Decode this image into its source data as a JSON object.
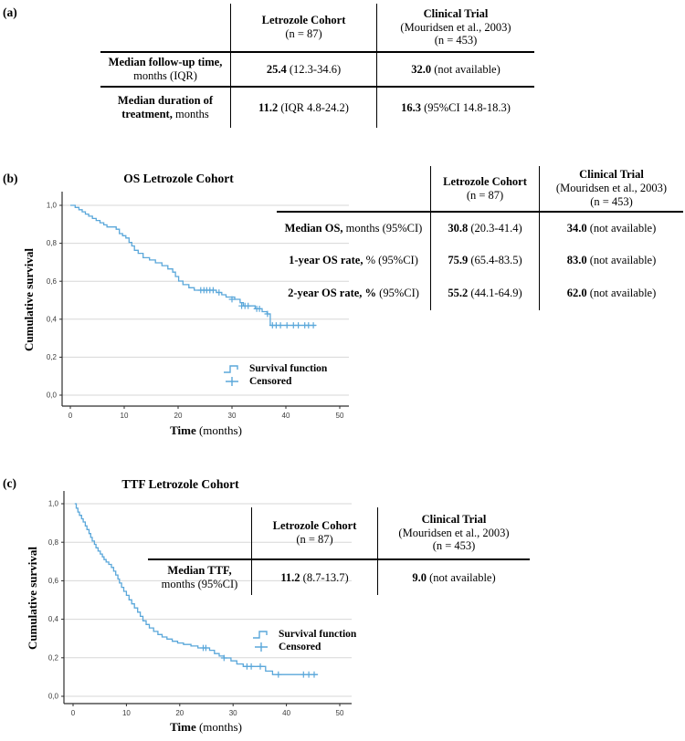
{
  "panels": {
    "a": {
      "label": "(a)",
      "table": {
        "header": {
          "col1_title": "Letrozole Cohort",
          "col1_sub": "(n = 87)",
          "col2_title": "Clinical Trial",
          "col2_sub": "(Mouridsen et al., 2003)",
          "col2_sub2": "(n = 453)"
        },
        "rows": [
          {
            "label_bold": "Median follow-up time,",
            "label_reg": " months (IQR)",
            "v1_bold": "25.4",
            "v1_reg": " (12.3-34.6)",
            "v2_bold": "32.0",
            "v2_reg": " (not available)"
          },
          {
            "label_bold": "Median duration of treatment,",
            "label_reg": " months",
            "v1_bold": "11.2",
            "v1_reg": " (IQR 4.8-24.2)",
            "v2_bold": "16.3",
            "v2_reg": " (95%CI 14.8-18.3)"
          }
        ]
      }
    },
    "b": {
      "label": "(b)",
      "title": "OS Letrozole Cohort",
      "ylabel": "Cumulative survival",
      "xlabel_bold": "Time",
      "xlabel_reg": " (months)",
      "legend": {
        "survival": "Survival function",
        "censored": "Censored"
      },
      "table": {
        "header": {
          "col1_title": "Letrozole Cohort",
          "col1_sub": "(n = 87)",
          "col2_title": "Clinical Trial",
          "col2_sub": "(Mouridsen et al., 2003)",
          "col2_sub2": "(n = 453)"
        },
        "rows": [
          {
            "label_bold": "Median OS,",
            "label_reg": " months (95%CI)",
            "v1_bold": "30.8",
            "v1_reg": " (20.3-41.4)",
            "v2_bold": "34.0",
            "v2_reg": " (not available)"
          },
          {
            "label_bold": "1-year OS rate,",
            "label_reg": " % (95%CI)",
            "v1_bold": "75.9",
            "v1_reg": " (65.4-83.5)",
            "v2_bold": "83.0",
            "v2_reg": " (not available)"
          },
          {
            "label_bold": "2-year OS rate, %",
            "label_reg": " (95%CI)",
            "v1_bold": "55.2",
            "v1_reg": " (44.1-64.9)",
            "v2_bold": "62.0",
            "v2_reg": " (not available)"
          }
        ]
      }
    },
    "c": {
      "label": "(c)",
      "title": "TTF Letrozole Cohort",
      "ylabel": "Cumulative survival",
      "xlabel_bold": "Time",
      "xlabel_reg": " (months)",
      "legend": {
        "survival": "Survival function",
        "censored": "Censored"
      },
      "table": {
        "header": {
          "col1_title": "Letrozole Cohort",
          "col1_sub": "(n = 87)",
          "col2_title": "Clinical Trial",
          "col2_sub": "(Mouridsen et al., 2003)",
          "col2_sub2": "(n = 453)"
        },
        "rows": [
          {
            "label_bold": "Median TTF,",
            "label_reg": " months (95%CI)",
            "v1_bold": "11.2",
            "v1_reg": " (8.7-13.7)",
            "v2_bold": "9.0",
            "v2_reg": " (not available)"
          }
        ]
      }
    }
  },
  "chart_data": [
    {
      "id": "os",
      "type": "line",
      "subtype": "kaplan-meier-step",
      "title": "OS Letrozole Cohort",
      "xlabel": "Time (months)",
      "ylabel": "Cumulative survival",
      "xlim": [
        0,
        50
      ],
      "ylim": [
        0.0,
        1.0
      ],
      "xticks": [
        "0",
        "10",
        "20",
        "30",
        "40",
        "50"
      ],
      "yticks": [
        "0,0",
        "0,2",
        "0,4",
        "0,6",
        "0,8",
        "1,0"
      ],
      "grid": true,
      "legend_position": "lower center-right",
      "legend": [
        "Survival function",
        "Censored"
      ],
      "color": "#5aa7da",
      "series": [
        {
          "name": "Survival function",
          "step_points": [
            [
              0,
              1.0
            ],
            [
              0.9,
              0.989
            ],
            [
              1.6,
              0.977
            ],
            [
              2.2,
              0.966
            ],
            [
              2.8,
              0.954
            ],
            [
              3.4,
              0.943
            ],
            [
              4.1,
              0.931
            ],
            [
              4.8,
              0.92
            ],
            [
              5.5,
              0.908
            ],
            [
              6.2,
              0.897
            ],
            [
              6.8,
              0.886
            ],
            [
              8.5,
              0.874
            ],
            [
              9.1,
              0.851
            ],
            [
              9.7,
              0.84
            ],
            [
              10.3,
              0.828
            ],
            [
              10.9,
              0.805
            ],
            [
              11.4,
              0.786
            ],
            [
              11.9,
              0.763
            ],
            [
              12.6,
              0.747
            ],
            [
              13.5,
              0.724
            ],
            [
              14.7,
              0.712
            ],
            [
              15.8,
              0.697
            ],
            [
              17,
              0.682
            ],
            [
              18.1,
              0.665
            ],
            [
              19,
              0.648
            ],
            [
              19.5,
              0.625
            ],
            [
              20.1,
              0.601
            ],
            [
              20.9,
              0.582
            ],
            [
              22,
              0.566
            ],
            [
              23,
              0.553
            ],
            [
              27.1,
              0.541
            ],
            [
              28.1,
              0.529
            ],
            [
              28.9,
              0.517
            ],
            [
              30.5,
              0.505
            ],
            [
              31.5,
              0.487
            ],
            [
              32.1,
              0.47
            ],
            [
              34.3,
              0.455
            ],
            [
              35.6,
              0.44
            ],
            [
              36.5,
              0.428
            ],
            [
              37.1,
              0.368
            ],
            [
              45.6,
              0.368
            ]
          ]
        }
      ],
      "censored_points": [
        [
          24.2,
          0.553
        ],
        [
          24.8,
          0.553
        ],
        [
          25.3,
          0.553
        ],
        [
          25.9,
          0.553
        ],
        [
          26.5,
          0.553
        ],
        [
          27.6,
          0.541
        ],
        [
          30,
          0.505
        ],
        [
          31.8,
          0.47
        ],
        [
          32.4,
          0.47
        ],
        [
          33,
          0.47
        ],
        [
          34.6,
          0.455
        ],
        [
          35.1,
          0.455
        ],
        [
          36.6,
          0.428
        ],
        [
          37.5,
          0.368
        ],
        [
          38.2,
          0.368
        ],
        [
          39,
          0.368
        ],
        [
          40.2,
          0.368
        ],
        [
          41.4,
          0.368
        ],
        [
          42.3,
          0.368
        ],
        [
          43.5,
          0.368
        ],
        [
          44.2,
          0.368
        ],
        [
          45.1,
          0.368
        ]
      ]
    },
    {
      "id": "ttf",
      "type": "line",
      "subtype": "kaplan-meier-step",
      "title": "TTF Letrozole Cohort",
      "xlabel": "Time (months)",
      "ylabel": "Cumulative survival",
      "xlim": [
        0,
        50
      ],
      "ylim": [
        0.0,
        1.0
      ],
      "xticks": [
        "0",
        "10",
        "20",
        "30",
        "40",
        "50"
      ],
      "yticks": [
        "0,0",
        "0,2",
        "0,4",
        "0,6",
        "0,8",
        "1,0"
      ],
      "grid": true,
      "legend_position": "center right",
      "legend": [
        "Survival function",
        "Censored"
      ],
      "color": "#5aa7da",
      "series": [
        {
          "name": "Survival function",
          "step_points": [
            [
              0.3,
              1.0
            ],
            [
              0.6,
              0.977
            ],
            [
              0.9,
              0.957
            ],
            [
              1.2,
              0.94
            ],
            [
              1.6,
              0.922
            ],
            [
              1.9,
              0.905
            ],
            [
              2.3,
              0.885
            ],
            [
              2.6,
              0.866
            ],
            [
              3.0,
              0.845
            ],
            [
              3.3,
              0.825
            ],
            [
              3.6,
              0.806
            ],
            [
              4.0,
              0.789
            ],
            [
              4.3,
              0.771
            ],
            [
              4.7,
              0.754
            ],
            [
              5.1,
              0.739
            ],
            [
              5.5,
              0.724
            ],
            [
              5.8,
              0.71
            ],
            [
              6.2,
              0.697
            ],
            [
              6.7,
              0.685
            ],
            [
              7.2,
              0.669
            ],
            [
              7.6,
              0.65
            ],
            [
              8.0,
              0.63
            ],
            [
              8.4,
              0.609
            ],
            [
              8.7,
              0.588
            ],
            [
              9.1,
              0.566
            ],
            [
              9.5,
              0.545
            ],
            [
              10.0,
              0.524
            ],
            [
              10.5,
              0.501
            ],
            [
              11.0,
              0.48
            ],
            [
              11.5,
              0.459
            ],
            [
              12.1,
              0.437
            ],
            [
              12.6,
              0.415
            ],
            [
              13.1,
              0.392
            ],
            [
              13.7,
              0.373
            ],
            [
              14.3,
              0.355
            ],
            [
              15.1,
              0.337
            ],
            [
              15.9,
              0.321
            ],
            [
              16.7,
              0.308
            ],
            [
              17.6,
              0.297
            ],
            [
              18.6,
              0.286
            ],
            [
              19.6,
              0.277
            ],
            [
              20.7,
              0.269
            ],
            [
              22.1,
              0.261
            ],
            [
              23.4,
              0.251
            ],
            [
              25.6,
              0.239
            ],
            [
              26.5,
              0.222
            ],
            [
              27.4,
              0.209
            ],
            [
              28.3,
              0.199
            ],
            [
              29.6,
              0.184
            ],
            [
              30.7,
              0.168
            ],
            [
              31.9,
              0.155
            ],
            [
              36.1,
              0.131
            ],
            [
              37.4,
              0.113
            ],
            [
              45.9,
              0.113
            ]
          ]
        }
      ],
      "censored_points": [
        [
          24.4,
          0.251
        ],
        [
          24.9,
          0.251
        ],
        [
          28.3,
          0.199
        ],
        [
          32.6,
          0.155
        ],
        [
          33.4,
          0.155
        ],
        [
          35.1,
          0.155
        ],
        [
          38.5,
          0.113
        ],
        [
          43.2,
          0.113
        ],
        [
          44.2,
          0.113
        ],
        [
          45.2,
          0.113
        ]
      ]
    }
  ]
}
